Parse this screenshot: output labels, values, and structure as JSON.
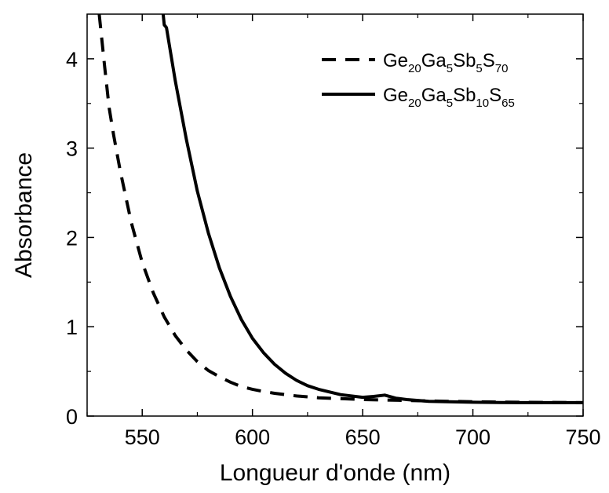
{
  "chart_data": {
    "type": "line",
    "title": "",
    "xlabel": "Longueur d'onde (nm)",
    "ylabel": "Absorbance",
    "xlim": [
      525,
      750
    ],
    "ylim": [
      0,
      4.5
    ],
    "x_ticks": [
      550,
      600,
      650,
      700,
      750
    ],
    "y_ticks": [
      0,
      1,
      2,
      3,
      4
    ],
    "grid": false,
    "legend_position": "top-right",
    "series": [
      {
        "name": "Ge20Ga5Sb5S70",
        "name_parts": [
          {
            "t": "Ge",
            "sub": false
          },
          {
            "t": "20",
            "sub": true
          },
          {
            "t": "Ga",
            "sub": false
          },
          {
            "t": "5",
            "sub": true
          },
          {
            "t": "Sb",
            "sub": false
          },
          {
            "t": "5",
            "sub": true
          },
          {
            "t": "S",
            "sub": false
          },
          {
            "t": "70",
            "sub": true
          }
        ],
        "line_style": "dashed",
        "color": "#000000",
        "x": [
          530.5,
          533,
          535,
          537,
          540,
          543,
          545,
          550,
          555,
          560,
          565,
          570,
          575,
          580,
          585,
          590,
          595,
          600,
          605,
          610,
          620,
          630,
          640,
          650,
          660,
          680,
          700,
          720,
          750
        ],
        "y": [
          4.5,
          3.9,
          3.45,
          3.15,
          2.75,
          2.4,
          2.17,
          1.72,
          1.38,
          1.11,
          0.9,
          0.74,
          0.61,
          0.51,
          0.44,
          0.38,
          0.33,
          0.3,
          0.275,
          0.255,
          0.225,
          0.205,
          0.195,
          0.185,
          0.18,
          0.17,
          0.16,
          0.155,
          0.15
        ]
      },
      {
        "name": "Ge20Ga5Sb10S65",
        "name_parts": [
          {
            "t": "Ge",
            "sub": false
          },
          {
            "t": "20",
            "sub": true
          },
          {
            "t": "Ga",
            "sub": false
          },
          {
            "t": "5",
            "sub": true
          },
          {
            "t": "Sb",
            "sub": false
          },
          {
            "t": "10",
            "sub": true
          },
          {
            "t": "S",
            "sub": false
          },
          {
            "t": "65",
            "sub": true
          }
        ],
        "line_style": "solid",
        "color": "#000000",
        "x": [
          559.5,
          560,
          561,
          562,
          565,
          570,
          575,
          580,
          585,
          590,
          595,
          600,
          605,
          610,
          615,
          620,
          625,
          630,
          640,
          650,
          655,
          660,
          665,
          670,
          680,
          700,
          720,
          750
        ],
        "y": [
          4.5,
          4.38,
          4.35,
          4.2,
          3.75,
          3.1,
          2.52,
          2.05,
          1.66,
          1.34,
          1.08,
          0.87,
          0.71,
          0.58,
          0.48,
          0.4,
          0.34,
          0.3,
          0.24,
          0.21,
          0.22,
          0.235,
          0.2,
          0.185,
          0.165,
          0.155,
          0.15,
          0.15
        ]
      }
    ]
  }
}
